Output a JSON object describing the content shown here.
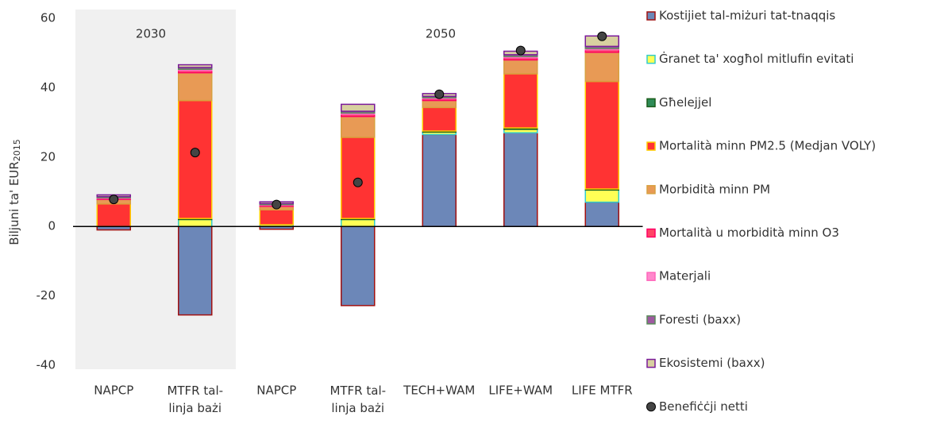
{
  "chart_data": {
    "type": "bar",
    "stacked": true,
    "ylabel": "Biljuni ta' EUR",
    "ylabel_sub": "2015",
    "group_labels": [
      "2030",
      "2050"
    ],
    "categories": [
      "NAPCP",
      "MTFR tal-linja bażi",
      "NAPCP",
      "MTFR tal-linja bażi",
      "TECH+WAM",
      "LIFE+WAM",
      "LIFE MTFR"
    ],
    "ylim": [
      -40,
      60
    ],
    "yticks": [
      -40,
      -20,
      0,
      20,
      40,
      60
    ],
    "grid": false,
    "series": [
      {
        "name": "Kostijiet tal-miżuri tat-tnaqqis",
        "color": "#6c87b8",
        "edge": "#a01010",
        "values": [
          -1,
          -25.5,
          -0.8,
          -22.8,
          26.5,
          27,
          7
        ]
      },
      {
        "name": "Ġranet ta' xogħol mitlufin evitati",
        "color": "#ffff55",
        "edge": "#33cccc",
        "values": [
          0,
          2,
          0.5,
          2,
          0.7,
          1,
          3.5
        ]
      },
      {
        "name": "Għelejjel",
        "color": "#2e8b57",
        "edge": "#1a5c1a",
        "values": [
          0,
          0.3,
          0,
          0.3,
          0.3,
          0.4,
          0.3
        ]
      },
      {
        "name": "Mortalità minn PM2.5 (Medjan VOLY)",
        "color": "#ff3333",
        "edge": "#ffcc00",
        "values": [
          6.5,
          34,
          4.3,
          23.4,
          6.8,
          15.6,
          31
        ]
      },
      {
        "name": "Morbidità minn PM",
        "color": "#e89a55",
        "edge": "#d8a040",
        "values": [
          1.3,
          8,
          1,
          6,
          2,
          4,
          8.4
        ]
      },
      {
        "name": "Mortalità u morbidità minn O3",
        "color": "#ff4466",
        "edge": "#ff0066",
        "values": [
          0.3,
          0.6,
          0.3,
          0.6,
          0.5,
          0.6,
          0.7
        ]
      },
      {
        "name": "Materjali",
        "color": "#ff88cc",
        "edge": "#ff66bb",
        "values": [
          0.2,
          0.4,
          0.2,
          0.4,
          0.3,
          0.4,
          0.4
        ]
      },
      {
        "name": "Foresti (baxx)",
        "color": "#9e5aa0",
        "edge": "#5a8a5a",
        "values": [
          0.3,
          0.5,
          0.3,
          0.5,
          0.4,
          0.5,
          0.6
        ]
      },
      {
        "name": "Ekosistemi (baxx)",
        "color": "#d8d0a0",
        "edge": "#7a1a9a",
        "values": [
          0.5,
          0.8,
          0.5,
          2,
          0.8,
          1,
          3
        ]
      }
    ],
    "net": {
      "name": "Benefiċċji netti",
      "color": "#444444",
      "values": [
        7.8,
        21.3,
        6.3,
        12.7,
        38.1,
        50.7,
        54.8
      ]
    }
  }
}
